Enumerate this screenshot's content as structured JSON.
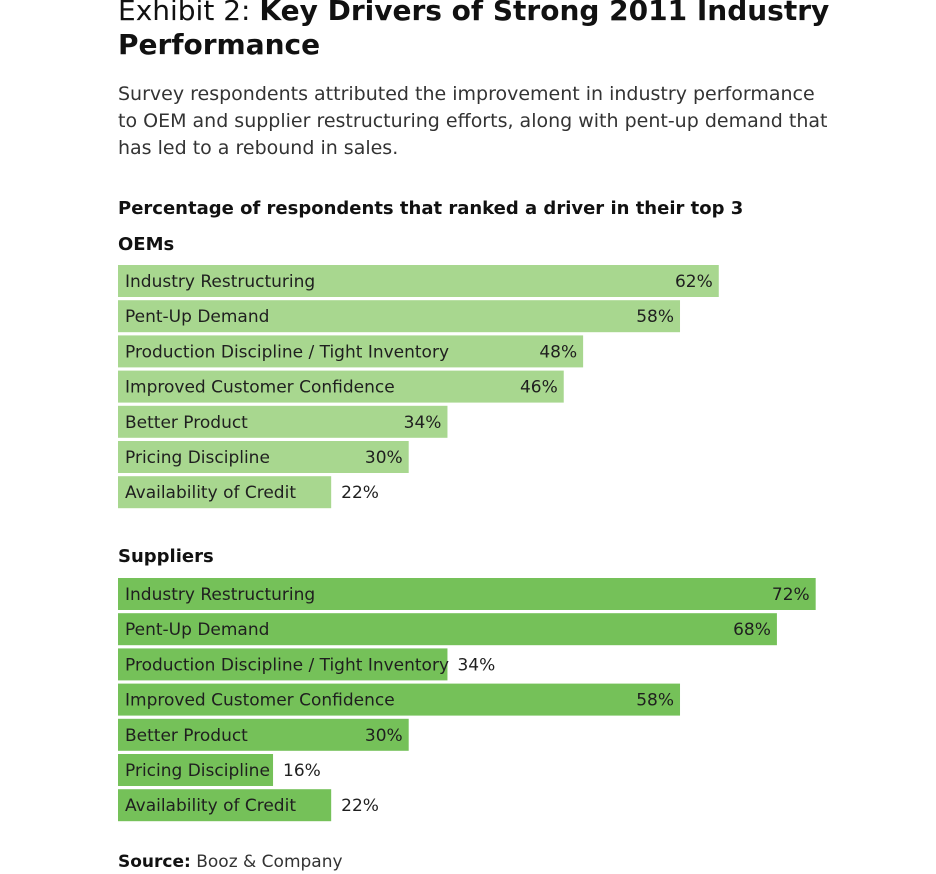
{
  "header": {
    "title_prefix": "Exhibit 2: ",
    "title_bold": "Key Drivers of Strong 2011 Industry Performance",
    "subtitle": "Survey respondents attributed the improvement in industry performance to OEM and supplier restructuring efforts, along with pent-up demand that has led to a rebound in sales."
  },
  "chart_heading": "Percentage of respondents that ranked a driver in their top 3",
  "source": {
    "label": "Source:",
    "text": "Booz & Company"
  },
  "colors": {
    "oem_bar": "#a8d78f",
    "supplier_bar": "#75c159"
  },
  "chart_data": [
    {
      "type": "bar",
      "orientation": "horizontal",
      "title": "OEMs",
      "value_format": "percent",
      "categories": [
        "Industry Restructuring",
        "Pent-Up Demand",
        "Production Discipline / Tight Inventory",
        "Improved Customer Confidence",
        "Better Product",
        "Pricing Discipline",
        "Availability of Credit"
      ],
      "values": [
        62,
        58,
        48,
        46,
        34,
        30,
        22
      ],
      "labels": [
        "62%",
        "58%",
        "48%",
        "46%",
        "34%",
        "30%",
        "22%"
      ]
    },
    {
      "type": "bar",
      "orientation": "horizontal",
      "title": "Suppliers",
      "value_format": "percent",
      "categories": [
        "Industry Restructuring",
        "Pent-Up Demand",
        "Production Discipline / Tight Inventory",
        "Improved Customer Confidence",
        "Better Product",
        "Pricing Discipline",
        "Availability of Credit"
      ],
      "values": [
        72,
        68,
        34,
        58,
        30,
        16,
        22
      ],
      "labels": [
        "72%",
        "68%",
        "34%",
        "58%",
        "30%",
        "16%",
        "22%"
      ]
    }
  ]
}
